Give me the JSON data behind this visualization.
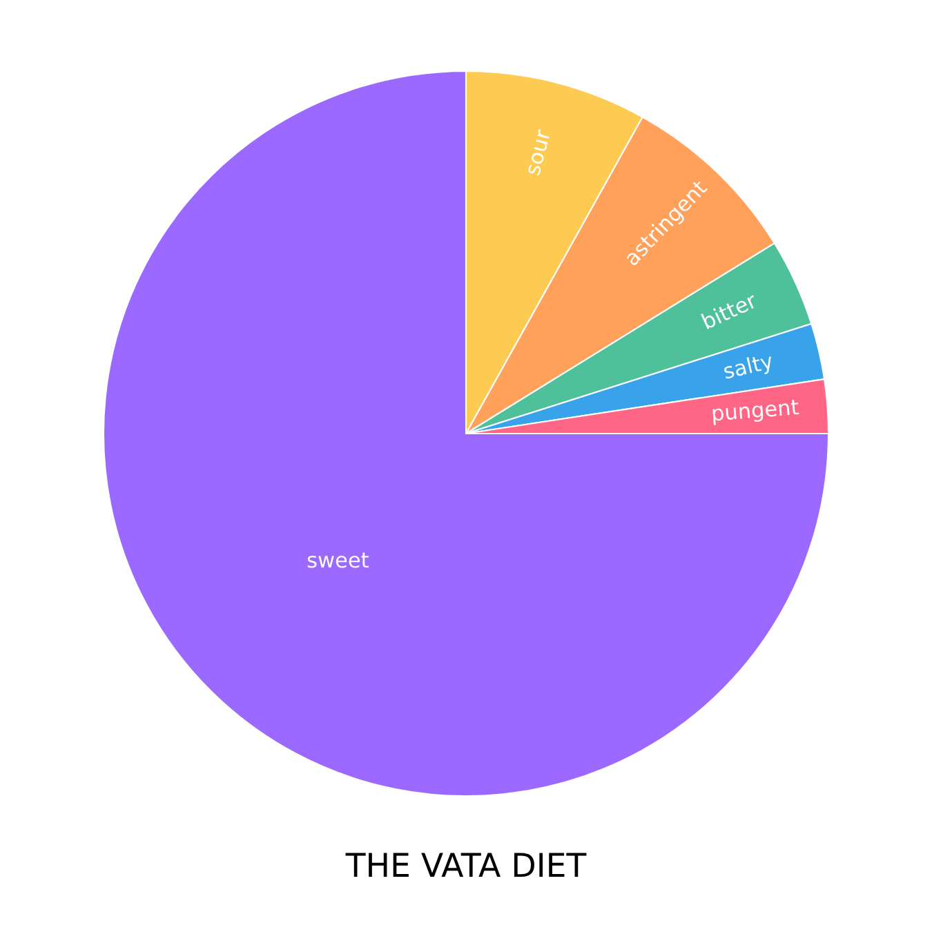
{
  "chart_data": {
    "type": "pie",
    "title": "THE VATA DIET",
    "categories": [
      "sour",
      "astringent",
      "bitter",
      "salty",
      "pungent",
      "sweet"
    ],
    "values": [
      8.1,
      8.1,
      3.9,
      2.5,
      2.4,
      75.0
    ],
    "colors": [
      "#fecb52",
      "#ffa15a",
      "#4fc19a",
      "#38a3ea",
      "#ff6685",
      "#9b69ff"
    ],
    "legend": false
  }
}
